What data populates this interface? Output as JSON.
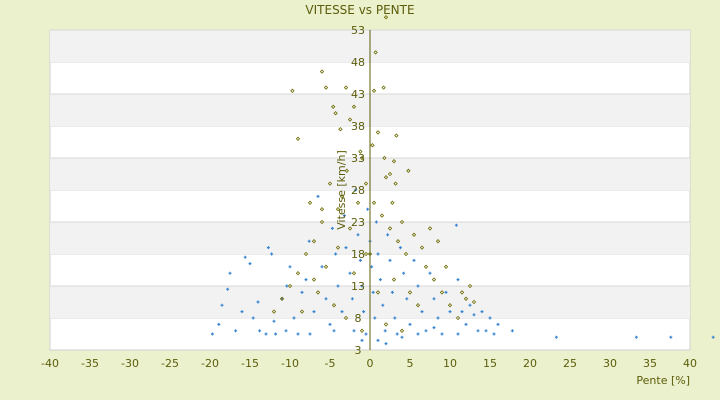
{
  "chart_data": {
    "type": "scatter",
    "title": "VITESSE vs PENTE",
    "xlabel": "Pente [%]",
    "ylabel": "Vitesse [km/h]",
    "xlim": [
      -40,
      40
    ],
    "ylim": [
      3,
      53
    ],
    "xticks": [
      -40,
      -35,
      -30,
      -25,
      -20,
      -15,
      -10,
      -5,
      0,
      5,
      10,
      15,
      20,
      25,
      30,
      35,
      40
    ],
    "yticks": [
      3,
      8,
      13,
      18,
      23,
      28,
      33,
      38,
      43,
      48,
      53
    ],
    "grid": "horizontal alternating bands",
    "legend": "none",
    "colors": {
      "background": "#ebf1cd",
      "band": "#f2f2f2",
      "axis": "#5c5c0a",
      "series1": "#3a86d4",
      "series2": "#6b6b00"
    },
    "series": [
      {
        "marker": "plus",
        "color": "#3a86d4",
        "points": [
          [
            -19.7,
            5.5
          ],
          [
            -18.9,
            7
          ],
          [
            -18.5,
            10
          ],
          [
            -17.8,
            12.5
          ],
          [
            -17.5,
            15
          ],
          [
            -16.8,
            6
          ],
          [
            -16,
            9
          ],
          [
            -15.6,
            17.5
          ],
          [
            -15,
            16.5
          ],
          [
            -14.6,
            8
          ],
          [
            -14,
            10.5
          ],
          [
            -13.8,
            6
          ],
          [
            -13,
            5.5
          ],
          [
            -12.7,
            19
          ],
          [
            -12.3,
            18
          ],
          [
            -12,
            7.5
          ],
          [
            -11.8,
            5.5
          ],
          [
            -11,
            11
          ],
          [
            -10.5,
            6
          ],
          [
            -10.4,
            13
          ],
          [
            -10,
            16
          ],
          [
            -9.5,
            8
          ],
          [
            -9,
            5.5
          ],
          [
            -8.5,
            12
          ],
          [
            -8,
            14
          ],
          [
            -7.6,
            20
          ],
          [
            -7.5,
            5.5
          ],
          [
            -7,
            9
          ],
          [
            -6.5,
            27
          ],
          [
            -6,
            16
          ],
          [
            -5.5,
            11
          ],
          [
            -5,
            7
          ],
          [
            -4.7,
            22
          ],
          [
            -4.5,
            6
          ],
          [
            -4.3,
            18
          ],
          [
            -4,
            13
          ],
          [
            -3.5,
            9
          ],
          [
            -3.2,
            24
          ],
          [
            -3,
            19
          ],
          [
            -2.5,
            15
          ],
          [
            -2.2,
            11
          ],
          [
            -2,
            6
          ],
          [
            -1.8,
            28
          ],
          [
            -1.5,
            21
          ],
          [
            -1.2,
            17
          ],
          [
            -1,
            13
          ],
          [
            -1,
            4.5
          ],
          [
            -0.8,
            9
          ],
          [
            -0.5,
            5.5
          ],
          [
            -0.3,
            25
          ],
          [
            0,
            20
          ],
          [
            0.2,
            16
          ],
          [
            0.4,
            12
          ],
          [
            0.6,
            8
          ],
          [
            0.8,
            23
          ],
          [
            1,
            18
          ],
          [
            1,
            4.5
          ],
          [
            1.3,
            14
          ],
          [
            1.6,
            10
          ],
          [
            1.9,
            6
          ],
          [
            2,
            4
          ],
          [
            2.2,
            21
          ],
          [
            2.5,
            17
          ],
          [
            2.8,
            12
          ],
          [
            3.1,
            8
          ],
          [
            3.4,
            5.5
          ],
          [
            3.8,
            19
          ],
          [
            4,
            5
          ],
          [
            4.2,
            15
          ],
          [
            4.6,
            11
          ],
          [
            5,
            7
          ],
          [
            5.5,
            17
          ],
          [
            6,
            13
          ],
          [
            6,
            5.5
          ],
          [
            6.5,
            9
          ],
          [
            7,
            6
          ],
          [
            7.5,
            15
          ],
          [
            8,
            11
          ],
          [
            8,
            6.5
          ],
          [
            8.5,
            8
          ],
          [
            9,
            5.5
          ],
          [
            9.5,
            12
          ],
          [
            10,
            9
          ],
          [
            10.8,
            22.5
          ],
          [
            11,
            14
          ],
          [
            11,
            5.5
          ],
          [
            11.5,
            9
          ],
          [
            12,
            7
          ],
          [
            12.5,
            10
          ],
          [
            13,
            8.5
          ],
          [
            13.5,
            6
          ],
          [
            14,
            9
          ],
          [
            14.5,
            6
          ],
          [
            15,
            8
          ],
          [
            15.5,
            5.5
          ],
          [
            16,
            7
          ],
          [
            17.8,
            6
          ],
          [
            23.3,
            5
          ],
          [
            33.3,
            5
          ],
          [
            37.6,
            5
          ],
          [
            42.9,
            5
          ]
        ]
      },
      {
        "marker": "diamond",
        "color": "#6b6b00",
        "points": [
          [
            -9.7,
            43.5
          ],
          [
            -9,
            36
          ],
          [
            -6,
            46.5
          ],
          [
            -5.5,
            44
          ],
          [
            -4.6,
            41
          ],
          [
            -4.3,
            40
          ],
          [
            -3.7,
            37.5
          ],
          [
            -3,
            44
          ],
          [
            -2.5,
            39
          ],
          [
            -2,
            41
          ],
          [
            -1,
            33
          ],
          [
            0.7,
            49.5
          ],
          [
            1.7,
            44
          ],
          [
            2,
            55
          ],
          [
            1,
            37
          ],
          [
            0.5,
            43.5
          ],
          [
            -2.9,
            31
          ],
          [
            1.8,
            33
          ],
          [
            2,
            30
          ],
          [
            2.5,
            30.5
          ],
          [
            3.2,
            29
          ],
          [
            3,
            32.5
          ],
          [
            4.8,
            31
          ],
          [
            -5,
            29
          ],
          [
            -4,
            25
          ],
          [
            -3.5,
            27
          ],
          [
            -6,
            23
          ],
          [
            -7,
            20
          ],
          [
            -8,
            18
          ],
          [
            -9,
            15
          ],
          [
            -10,
            13
          ],
          [
            -11,
            11
          ],
          [
            -12,
            9
          ],
          [
            -8.5,
            9
          ],
          [
            -7,
            14
          ],
          [
            -5.5,
            16
          ],
          [
            -4,
            19
          ],
          [
            -2.5,
            22
          ],
          [
            -1.5,
            26
          ],
          [
            -0.5,
            29
          ],
          [
            0.5,
            26
          ],
          [
            1.5,
            24
          ],
          [
            2.5,
            22
          ],
          [
            3.5,
            20
          ],
          [
            4.5,
            18
          ],
          [
            5.5,
            21
          ],
          [
            6.5,
            19
          ],
          [
            7,
            16
          ],
          [
            7.5,
            22
          ],
          [
            8.5,
            20
          ],
          [
            8,
            14
          ],
          [
            9,
            12
          ],
          [
            9.5,
            16
          ],
          [
            10,
            10
          ],
          [
            11,
            8
          ],
          [
            11.5,
            12
          ],
          [
            12,
            11
          ],
          [
            12.5,
            13
          ],
          [
            13,
            10.5
          ],
          [
            -6.5,
            12
          ],
          [
            -3,
            8
          ],
          [
            -1,
            6
          ],
          [
            2,
            7
          ],
          [
            4,
            6
          ],
          [
            6,
            10
          ],
          [
            -4.5,
            10
          ],
          [
            -2,
            15
          ],
          [
            1,
            12
          ],
          [
            3,
            14
          ],
          [
            5,
            12
          ],
          [
            -0.5,
            18
          ],
          [
            0.3,
            35
          ],
          [
            -1.2,
            34
          ],
          [
            2.8,
            26
          ],
          [
            4,
            23
          ],
          [
            -7.5,
            26
          ],
          [
            -6,
            25
          ],
          [
            3.3,
            36.5
          ],
          [
            0,
            18
          ]
        ]
      }
    ]
  }
}
